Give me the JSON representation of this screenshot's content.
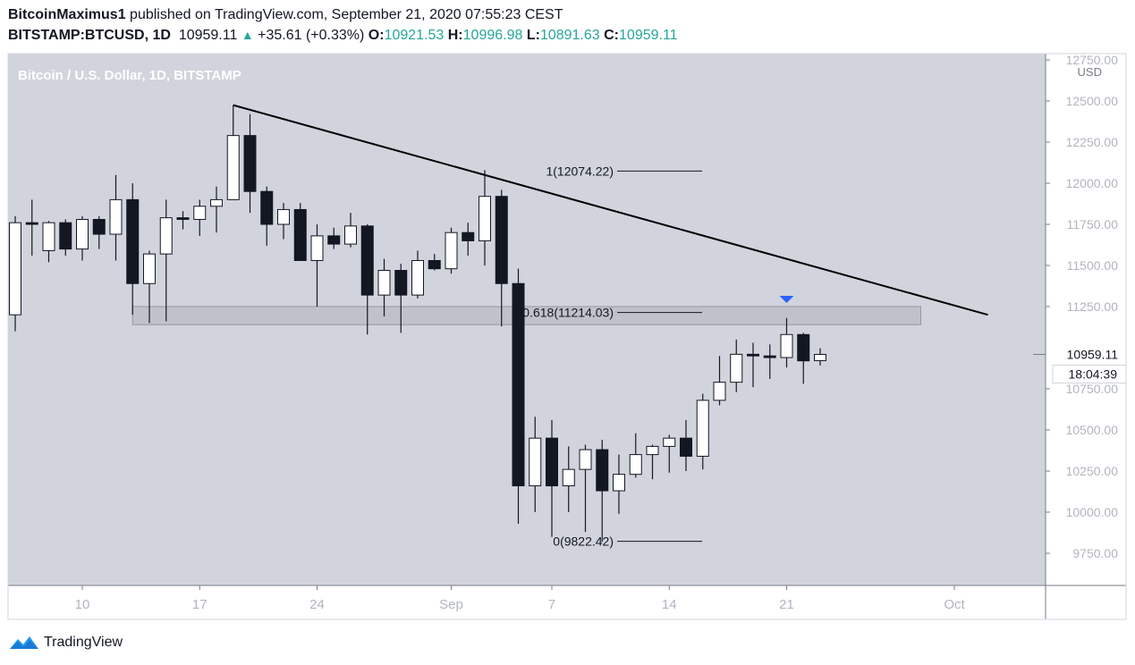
{
  "header": {
    "author": "BitcoinMaximus1",
    "published": " published on TradingView.com, September 21, 2020 07:55:23 CEST",
    "symbol": "BITSTAMP:BTCUSD, 1D",
    "last": "10959.11",
    "change": "+35.61 (+0.33%)",
    "open_label": "O:",
    "open": "10921.53",
    "high_label": "H:",
    "high": "10996.98",
    "low_label": "L:",
    "low": "10891.63",
    "close_label": "C:",
    "close": "10959.11"
  },
  "footer": {
    "brand": "TradingView",
    "logo_icon": "tradingview-logo-icon"
  },
  "colors": {
    "pane_bg": "#d1d4dc",
    "axis_bg": "#ffffff",
    "up_fill": "#ffffff",
    "down_fill": "#131722",
    "trendline": "#000000",
    "zone": "#b2b5be",
    "marker": "#2962ff",
    "up_text": "#26a69a"
  },
  "chart_data": {
    "type": "candlestick",
    "title": "Bitcoin / U.S. Dollar, 1D, BITSTAMP",
    "currency": "USD",
    "ylim": [
      9500,
      12750
    ],
    "y_ticks": [
      "12750.00",
      "12500.00",
      "12250.00",
      "12000.00",
      "11750.00",
      "11500.00",
      "11250.00",
      "10959.11",
      "10750.00",
      "10500.00",
      "10250.00",
      "10000.00",
      "9750.00"
    ],
    "x_ticks": [
      "10",
      "17",
      "24",
      "Sep",
      "7",
      "14",
      "21",
      "Oct"
    ],
    "last_price_label": "10959.11",
    "countdown_label": "18:04:39",
    "candles": [
      {
        "date": "2020-08-06",
        "o": 11200,
        "h": 11800,
        "l": 11100,
        "c": 11760
      },
      {
        "date": "2020-08-07",
        "o": 11760,
        "h": 11900,
        "l": 11560,
        "c": 11750
      },
      {
        "date": "2020-08-08",
        "o": 11590,
        "h": 11770,
        "l": 11520,
        "c": 11760
      },
      {
        "date": "2020-08-09",
        "o": 11760,
        "h": 11780,
        "l": 11560,
        "c": 11600
      },
      {
        "date": "2020-08-10",
        "o": 11600,
        "h": 11800,
        "l": 11530,
        "c": 11780
      },
      {
        "date": "2020-08-11",
        "o": 11780,
        "h": 11800,
        "l": 11600,
        "c": 11690
      },
      {
        "date": "2020-08-12",
        "o": 11690,
        "h": 12050,
        "l": 11530,
        "c": 11900
      },
      {
        "date": "2020-08-13",
        "o": 11900,
        "h": 12000,
        "l": 11200,
        "c": 11390
      },
      {
        "date": "2020-08-14",
        "o": 11390,
        "h": 11590,
        "l": 11150,
        "c": 11570
      },
      {
        "date": "2020-08-15",
        "o": 11570,
        "h": 11900,
        "l": 11160,
        "c": 11790
      },
      {
        "date": "2020-08-16",
        "o": 11790,
        "h": 11830,
        "l": 11720,
        "c": 11780
      },
      {
        "date": "2020-08-17",
        "o": 11780,
        "h": 11900,
        "l": 11680,
        "c": 11860
      },
      {
        "date": "2020-08-18",
        "o": 11860,
        "h": 11980,
        "l": 11700,
        "c": 11900
      },
      {
        "date": "2020-08-19",
        "o": 11900,
        "h": 12475,
        "l": 11900,
        "c": 12290
      },
      {
        "date": "2020-08-20",
        "o": 12290,
        "h": 12420,
        "l": 11820,
        "c": 11950
      },
      {
        "date": "2020-08-21",
        "o": 11950,
        "h": 11980,
        "l": 11620,
        "c": 11750
      },
      {
        "date": "2020-08-22",
        "o": 11750,
        "h": 11880,
        "l": 11660,
        "c": 11840
      },
      {
        "date": "2020-08-23",
        "o": 11840,
        "h": 11880,
        "l": 11560,
        "c": 11530
      },
      {
        "date": "2020-08-24",
        "o": 11530,
        "h": 11750,
        "l": 11250,
        "c": 11680
      },
      {
        "date": "2020-08-25",
        "o": 11680,
        "h": 11730,
        "l": 11600,
        "c": 11630
      },
      {
        "date": "2020-08-26",
        "o": 11630,
        "h": 11820,
        "l": 11610,
        "c": 11740
      },
      {
        "date": "2020-08-27",
        "o": 11740,
        "h": 11750,
        "l": 11080,
        "c": 11320
      },
      {
        "date": "2020-08-28",
        "o": 11320,
        "h": 11540,
        "l": 11190,
        "c": 11470
      },
      {
        "date": "2020-08-29",
        "o": 11470,
        "h": 11510,
        "l": 11090,
        "c": 11320
      },
      {
        "date": "2020-08-30",
        "o": 11320,
        "h": 11590,
        "l": 11300,
        "c": 11530
      },
      {
        "date": "2020-08-31",
        "o": 11530,
        "h": 11570,
        "l": 11470,
        "c": 11480
      },
      {
        "date": "2020-09-01",
        "o": 11480,
        "h": 11730,
        "l": 11450,
        "c": 11700
      },
      {
        "date": "2020-09-02",
        "o": 11700,
        "h": 11760,
        "l": 11560,
        "c": 11650
      },
      {
        "date": "2020-09-03",
        "o": 11650,
        "h": 12080,
        "l": 11500,
        "c": 11920
      },
      {
        "date": "2020-09-04",
        "o": 11920,
        "h": 11960,
        "l": 11130,
        "c": 11390
      },
      {
        "date": "2020-09-05",
        "o": 11390,
        "h": 11480,
        "l": 9930,
        "c": 10160
      },
      {
        "date": "2020-09-06",
        "o": 10160,
        "h": 10580,
        "l": 10000,
        "c": 10450
      },
      {
        "date": "2020-09-07",
        "o": 10450,
        "h": 10560,
        "l": 9850,
        "c": 10160
      },
      {
        "date": "2020-09-08",
        "o": 10160,
        "h": 10400,
        "l": 10000,
        "c": 10260
      },
      {
        "date": "2020-09-09",
        "o": 10260,
        "h": 10410,
        "l": 9880,
        "c": 10380
      },
      {
        "date": "2020-09-10",
        "o": 10380,
        "h": 10440,
        "l": 9820,
        "c": 10130
      },
      {
        "date": "2020-09-11",
        "o": 10130,
        "h": 10350,
        "l": 9990,
        "c": 10230
      },
      {
        "date": "2020-09-12",
        "o": 10230,
        "h": 10480,
        "l": 10210,
        "c": 10350
      },
      {
        "date": "2020-09-13",
        "o": 10350,
        "h": 10410,
        "l": 10200,
        "c": 10400
      },
      {
        "date": "2020-09-14",
        "o": 10400,
        "h": 10470,
        "l": 10240,
        "c": 10450
      },
      {
        "date": "2020-09-15",
        "o": 10450,
        "h": 10560,
        "l": 10250,
        "c": 10340
      },
      {
        "date": "2020-09-16",
        "o": 10340,
        "h": 10720,
        "l": 10260,
        "c": 10680
      },
      {
        "date": "2020-09-17",
        "o": 10680,
        "h": 10950,
        "l": 10650,
        "c": 10790
      },
      {
        "date": "2020-09-18",
        "o": 10790,
        "h": 11050,
        "l": 10730,
        "c": 10960
      },
      {
        "date": "2020-09-19",
        "o": 10960,
        "h": 11030,
        "l": 10760,
        "c": 10950
      },
      {
        "date": "2020-09-20",
        "o": 10950,
        "h": 11020,
        "l": 10810,
        "c": 10940
      },
      {
        "date": "2020-09-21",
        "o": 10940,
        "h": 11180,
        "l": 10880,
        "c": 11080
      },
      {
        "date": "2020-09-22",
        "o": 11080,
        "h": 11090,
        "l": 10780,
        "c": 10920
      },
      {
        "date": "2020-09-23",
        "o": 10921.53,
        "h": 10996.98,
        "l": 10891.63,
        "c": 10959.11
      }
    ],
    "trendline": {
      "from": {
        "date": "2020-08-19",
        "price": 12475
      },
      "to": {
        "date": "2020-10-03",
        "price": 11200
      }
    },
    "fib_levels": [
      {
        "label": "1(12074.22)",
        "price": 12074.22
      },
      {
        "label": "0.618(11214.03)",
        "price": 11214.03
      },
      {
        "label": "0(9822.42)",
        "price": 9822.42
      }
    ],
    "zone": {
      "from_date": "2020-08-13",
      "to_date": "2020-09-29",
      "top": 11250,
      "bottom": 11140
    },
    "marker": {
      "type": "arrow-down",
      "date": "2020-09-21",
      "price": 11250
    }
  }
}
